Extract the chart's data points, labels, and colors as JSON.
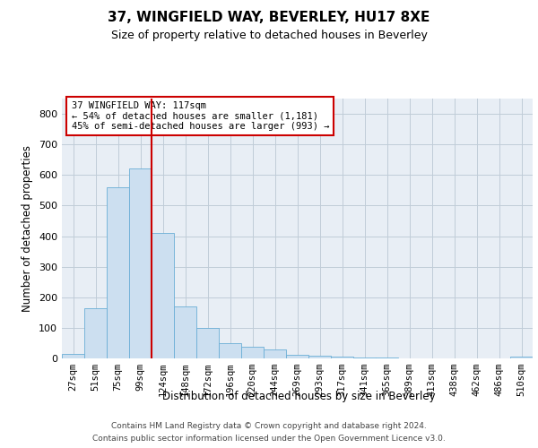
{
  "title": "37, WINGFIELD WAY, BEVERLEY, HU17 8XE",
  "subtitle": "Size of property relative to detached houses in Beverley",
  "xlabel": "Distribution of detached houses by size in Beverley",
  "ylabel": "Number of detached properties",
  "bar_color": "#ccdff0",
  "bar_edge_color": "#6aaed6",
  "background_color": "#ffffff",
  "axes_background": "#e8eef5",
  "grid_color": "#c0ccd8",
  "annotation_line_color": "#cc0000",
  "annotation_box_edgecolor": "#cc0000",
  "annotation_line1": "37 WINGFIELD WAY: 117sqm",
  "annotation_line2": "← 54% of detached houses are smaller (1,181)",
  "annotation_line3": "45% of semi-detached houses are larger (993) →",
  "categories": [
    "27sqm",
    "51sqm",
    "75sqm",
    "99sqm",
    "124sqm",
    "148sqm",
    "172sqm",
    "196sqm",
    "220sqm",
    "244sqm",
    "269sqm",
    "293sqm",
    "317sqm",
    "341sqm",
    "365sqm",
    "389sqm",
    "413sqm",
    "438sqm",
    "462sqm",
    "486sqm",
    "510sqm"
  ],
  "values": [
    15,
    165,
    560,
    620,
    410,
    170,
    100,
    50,
    38,
    28,
    12,
    10,
    5,
    4,
    2,
    1,
    0,
    0,
    0,
    0,
    5
  ],
  "property_bin_index": 3,
  "ylim": [
    0,
    850
  ],
  "yticks": [
    0,
    100,
    200,
    300,
    400,
    500,
    600,
    700,
    800
  ],
  "footer_line1": "Contains HM Land Registry data © Crown copyright and database right 2024.",
  "footer_line2": "Contains public sector information licensed under the Open Government Licence v3.0."
}
